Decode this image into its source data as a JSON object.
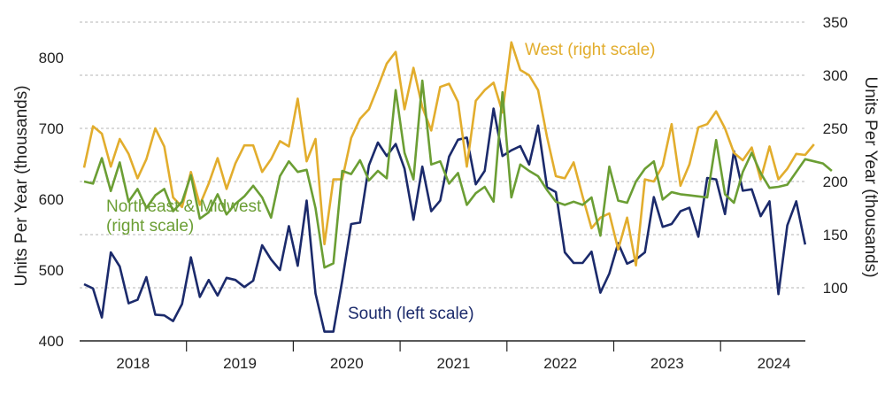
{
  "chart_data": {
    "type": "line",
    "title": "",
    "ylabel_left": "Units Per Year (thousands)",
    "ylabel_right": "Units Per Year (thousands)",
    "ylim_left": [
      400,
      850
    ],
    "ylim_right": [
      50,
      350
    ],
    "yticks_left": [
      400,
      500,
      600,
      700,
      800
    ],
    "yticks_right": [
      100,
      150,
      200,
      250,
      300,
      350
    ],
    "grid": true,
    "years": [
      "2018",
      "2019",
      "2020",
      "2021",
      "2022",
      "2023",
      "2024"
    ],
    "start": "2018-01",
    "frequency": "monthly",
    "series": [
      {
        "name": "South",
        "annotation": "South (left scale)",
        "axis": "left",
        "color": "#1b2a6b",
        "values": [
          480,
          474,
          433,
          525,
          505,
          453,
          458,
          490,
          437,
          436,
          428,
          452,
          518,
          462,
          486,
          464,
          489,
          486,
          476,
          485,
          535,
          515,
          500,
          562,
          506,
          598,
          467,
          413,
          413,
          485,
          565,
          567,
          648,
          680,
          661,
          678,
          643,
          571,
          646,
          583,
          598,
          660,
          684,
          687,
          621,
          640,
          728,
          661,
          669,
          675,
          649,
          704,
          617,
          610,
          525,
          510,
          510,
          526,
          468,
          495,
          538,
          509,
          515,
          525,
          603,
          561,
          565,
          583,
          588,
          547,
          630,
          628,
          579,
          668,
          612,
          614,
          576,
          597,
          466,
          563,
          597,
          536
        ]
      },
      {
        "name": "West",
        "annotation": "West (right scale)",
        "axis": "right",
        "color": "#e2ad2d",
        "values": [
          213,
          252,
          245,
          214,
          240,
          226,
          203,
          221,
          250,
          233,
          185,
          176,
          209,
          178,
          198,
          222,
          193,
          217,
          234,
          234,
          209,
          221,
          238,
          233,
          278,
          219,
          240,
          141,
          202,
          202,
          241,
          259,
          268,
          289,
          311,
          322,
          268,
          307,
          270,
          248,
          289,
          292,
          275,
          214,
          276,
          286,
          293,
          265,
          331,
          305,
          300,
          286,
          242,
          205,
          203,
          218,
          186,
          156,
          166,
          170,
          136,
          166,
          121,
          202,
          200,
          215,
          254,
          196,
          216,
          251,
          254,
          266,
          250,
          227,
          220,
          232,
          202,
          233,
          202,
          212,
          226,
          225,
          235
        ]
      },
      {
        "name": "Northeast & Midwest",
        "annotation": [
          "Northeast & Midwest",
          "(right scale)"
        ],
        "axis": "right",
        "color": "#6b9e34",
        "values": [
          200,
          198,
          222,
          191,
          218,
          181,
          193,
          175,
          187,
          193,
          172,
          181,
          206,
          165,
          171,
          188,
          169,
          179,
          186,
          196,
          185,
          166,
          205,
          219,
          209,
          211,
          175,
          119,
          123,
          210,
          207,
          220,
          201,
          210,
          203,
          286,
          227,
          202,
          295,
          216,
          219,
          198,
          208,
          178,
          189,
          195,
          181,
          284,
          185,
          216,
          210,
          205,
          192,
          181,
          178,
          181,
          178,
          185,
          149,
          214,
          182,
          180,
          200,
          212,
          219,
          183,
          190,
          188,
          187,
          186,
          185,
          239,
          188,
          180,
          209,
          227,
          208,
          194,
          195,
          197,
          209,
          221,
          219,
          217,
          210
        ]
      }
    ]
  }
}
